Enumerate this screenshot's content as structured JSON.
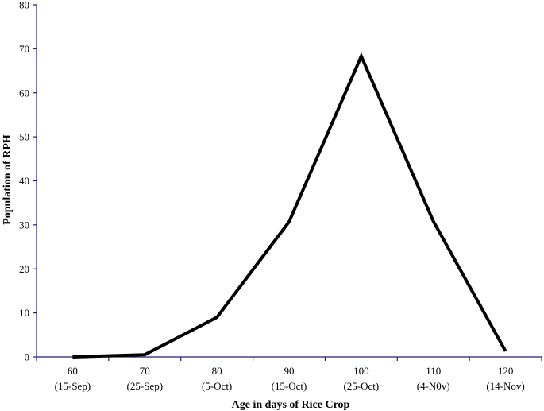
{
  "chart_data": {
    "type": "line",
    "xlabel": "Age in days of Rice Crop",
    "ylabel": "Population of RPH",
    "categories": [
      [
        "60",
        "(15-Sep)"
      ],
      [
        "70",
        "(25-Sep)"
      ],
      [
        "80",
        "(5-Oct)"
      ],
      [
        "90",
        "(15-Oct)"
      ],
      [
        "100",
        "(25-Oct)"
      ],
      [
        "110",
        "(4-N0v)"
      ],
      [
        "120",
        "(14-Nov)"
      ]
    ],
    "values": [
      0,
      0.5,
      9,
      30.7,
      68.3,
      30.8,
      1.3
    ],
    "ylim": [
      0,
      80
    ],
    "yticks": [
      0,
      10,
      20,
      30,
      40,
      50,
      60,
      70,
      80
    ],
    "grid": false,
    "legend": "none",
    "colors": {
      "axis": "#1f1f7a",
      "line": "#000000"
    }
  }
}
